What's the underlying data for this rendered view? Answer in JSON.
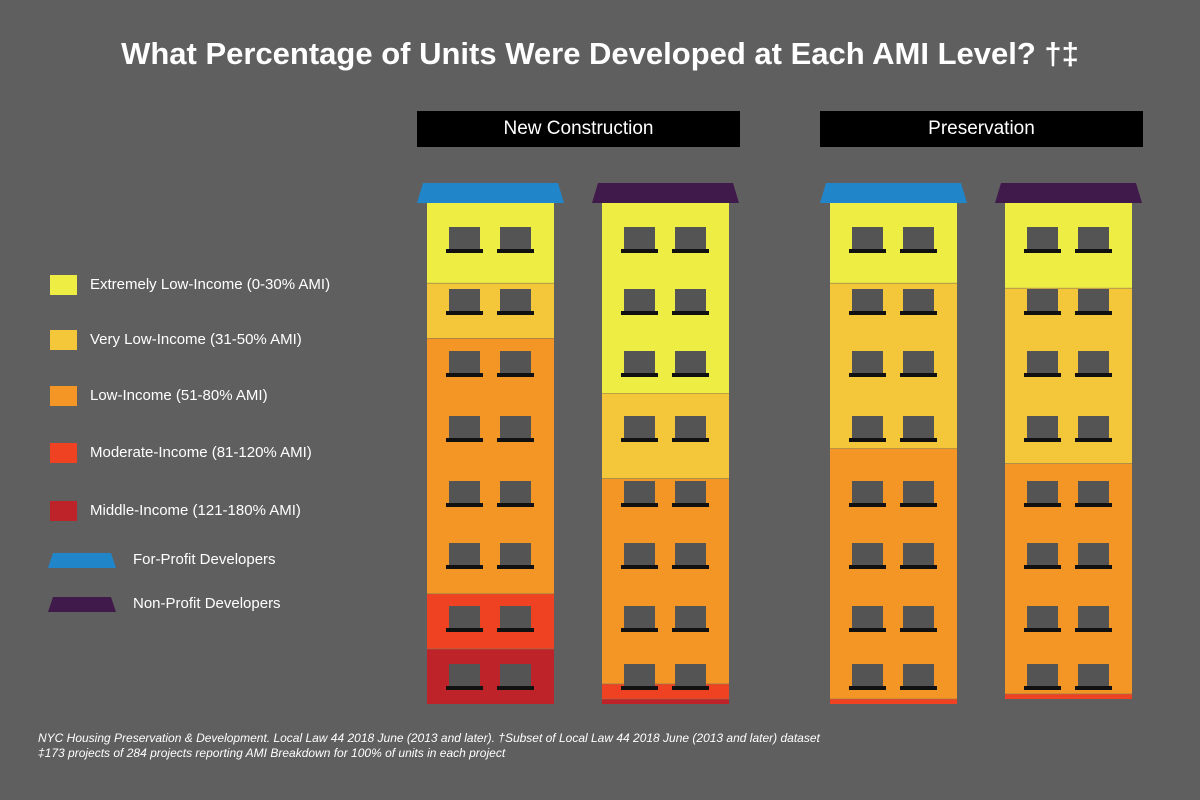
{
  "title": "What Percentage of Units Were Developed at Each AMI Level? †‡",
  "groups": [
    {
      "label": "New Construction"
    },
    {
      "label": "Preservation"
    }
  ],
  "legend": {
    "levels": [
      {
        "label": "Extremely Low-Income (0-30% AMI)",
        "color": "#eded44"
      },
      {
        "label": "Very Low-Income (31-50% AMI)",
        "color": "#f4c63a"
      },
      {
        "label": "Low-Income (51-80% AMI)",
        "color": "#f39626"
      },
      {
        "label": "Moderate-Income (81-120% AMI)",
        "color": "#ee4223"
      },
      {
        "label": "Middle-Income (121-180% AMI)",
        "color": "#be2329"
      }
    ],
    "developers": [
      {
        "label": "For-Profit Developers",
        "color": "#2185c9"
      },
      {
        "label": "Non-Profit Developers",
        "color": "#3f1a4a"
      }
    ]
  },
  "chart_data": {
    "type": "bar",
    "stacked": true,
    "unit": "percent of units",
    "categories": [
      "New Construction – For-Profit Developers",
      "New Construction – Non-Profit Developers",
      "Preservation – For-Profit Developers",
      "Preservation – Non-Profit Developers"
    ],
    "series": [
      {
        "name": "Extremely Low-Income (0-30% AMI)",
        "values": [
          16,
          38,
          16,
          17
        ]
      },
      {
        "name": "Very Low-Income (31-50% AMI)",
        "values": [
          11,
          17,
          33,
          35
        ]
      },
      {
        "name": "Low-Income (51-80% AMI)",
        "values": [
          51,
          41,
          50,
          46
        ]
      },
      {
        "name": "Moderate-Income (81-120% AMI)",
        "values": [
          11,
          3,
          1,
          1
        ]
      },
      {
        "name": "Middle-Income (121-180% AMI)",
        "values": [
          11,
          1,
          0,
          0
        ]
      }
    ],
    "ylim": [
      0,
      100
    ]
  },
  "source": [
    "NYC Housing Preservation & Development. Local Law 44 2018 June (2013 and later). †Subset of Local Law 44 2018 June (2013 and later) dataset",
    "‡173 projects of 284 projects reporting AMI Breakdown for 100% of units in each project"
  ]
}
